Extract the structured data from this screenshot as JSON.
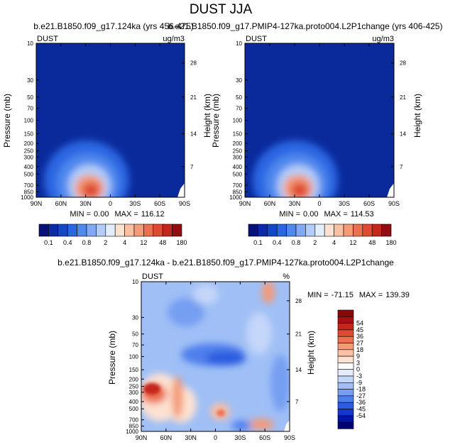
{
  "page": {
    "title": "DUST JJA"
  },
  "colors": {
    "plot_background": "#0a2a9c",
    "abs_colorbar": [
      "#08107a",
      "#0b2aa8",
      "#1446c8",
      "#2a66e2",
      "#5088ee",
      "#80aaf4",
      "#b2cef8",
      "#e2eefc",
      "#fde2d2",
      "#f9c0a4",
      "#f49a76",
      "#ec7050",
      "#de4a32",
      "#c4261c",
      "#940c10"
    ],
    "diff_colorbar": [
      "#00007a",
      "#0014a6",
      "#1438cc",
      "#2c5ce0",
      "#4f7fec",
      "#769ff2",
      "#9fbff6",
      "#c4d6f9",
      "#e4ecfb",
      "#fbfbfb",
      "#fde2d2",
      "#f9c0a4",
      "#f49a76",
      "#ec7050",
      "#de4a32",
      "#c4261c",
      "#a80e12",
      "#860808"
    ]
  },
  "chart_data": [
    {
      "type": "heatmap",
      "title": "b.e21.B1850.f09_g17.124ka (yrs 456-475)",
      "left_label": "DUST",
      "right_label": "ug/m3",
      "ylabel": "Pressure (mb)",
      "ylabel_right": "Height (km)",
      "x_ticks": [
        "90N",
        "60N",
        "30N",
        "0",
        "30S",
        "60S",
        "90S"
      ],
      "y_ticks": [
        "10",
        "30",
        "50",
        "70",
        "100",
        "150",
        "200",
        "250",
        "300",
        "400",
        "500",
        "700",
        "850",
        "1000"
      ],
      "y_right_ticks": [
        "28",
        "21",
        "14",
        "7"
      ],
      "stats": {
        "min_label": "MIN =",
        "min": "0.00",
        "max_label": "MAX =",
        "max": "116.12"
      },
      "colorbar_labels": [
        "0.1",
        "0.4",
        "0.8",
        "2",
        "4",
        "12",
        "48",
        "180"
      ]
    },
    {
      "type": "heatmap",
      "title": "b.e21.B1850.f09_g17.PMIP4-127ka.proto004.L2P1change (yrs 406-425)",
      "left_label": "DUST",
      "right_label": "ug/m3",
      "ylabel": "Pressure (mb)",
      "ylabel_right": "Height (km)",
      "x_ticks": [
        "90N",
        "60N",
        "30N",
        "0",
        "30S",
        "60S",
        "90S"
      ],
      "y_ticks": [
        "10",
        "30",
        "50",
        "70",
        "100",
        "150",
        "200",
        "250",
        "300",
        "400",
        "500",
        "700",
        "850",
        "1000"
      ],
      "y_right_ticks": [
        "28",
        "21",
        "14",
        "7"
      ],
      "stats": {
        "min_label": "MIN =",
        "min": "0.00",
        "max_label": "MAX =",
        "max": "114.53"
      },
      "colorbar_labels": [
        "0.1",
        "0.4",
        "0.8",
        "2",
        "4",
        "12",
        "48",
        "180"
      ]
    },
    {
      "type": "heatmap",
      "title": "b.e21.B1850.f09_g17.124ka - b.e21.B1850.f09_g17.PMIP4-127ka.proto004.L2P1change",
      "left_label": "DUST",
      "right_label": "%",
      "ylabel": "Pressure (mb)",
      "ylabel_right": "Height (km)",
      "x_ticks": [
        "90N",
        "60N",
        "30N",
        "0",
        "30S",
        "60S",
        "90S"
      ],
      "y_ticks": [
        "10",
        "30",
        "50",
        "70",
        "100",
        "150",
        "200",
        "250",
        "300",
        "400",
        "500",
        "700",
        "850",
        "1000"
      ],
      "y_right_ticks": [
        "28",
        "21",
        "14",
        "7"
      ],
      "stats": {
        "min_label": "MIN =",
        "min": "-71.15",
        "max_label": "MAX =",
        "max": "139.39"
      },
      "colorbar_labels": [
        "54",
        "45",
        "36",
        "27",
        "18",
        "9",
        "3",
        "0",
        "-3",
        "-9",
        "-18",
        "-27",
        "-36",
        "-45",
        "-54"
      ]
    }
  ]
}
